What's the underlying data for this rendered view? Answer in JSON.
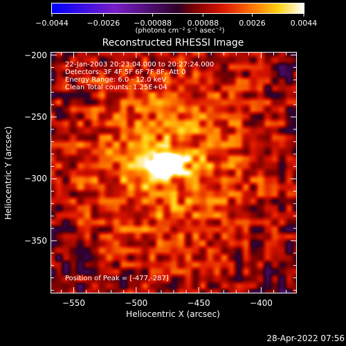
{
  "colorbar": {
    "tick_labels": [
      "−0.0044",
      "−0.0026",
      "−0.00088",
      "0.00088",
      "0.0026",
      "0.0044"
    ],
    "unit_label": "(photons cm⁻² s⁻¹ asec⁻²)"
  },
  "plot": {
    "title": "Reconstructed RHESSI Image",
    "info": {
      "date_line": "22-Jan-2003 20:23:04.000 to 20:27:24.000",
      "detectors_line": "Detectors: 3F 4F 5F 6F 7F 8F, Att 0",
      "energy_line": "Energy Range: 6.0 - 12.0 keV",
      "algorithm_line": "Clean     Total counts: 1.25E+04"
    },
    "peak_label": "Position of Peak = [-477,-287]",
    "x_axis": {
      "label": "Heliocentric X (arcsec)",
      "tick_labels": [
        "−550",
        "−500",
        "−450",
        "−400"
      ]
    },
    "y_axis": {
      "label": "Heliocentric Y (arcsec)",
      "tick_labels": [
        "−200",
        "−250",
        "−300",
        "−350"
      ]
    }
  },
  "chart_data": {
    "type": "heatmap",
    "title": "Reconstructed RHESSI Image",
    "xlabel": "Heliocentric X (arcsec)",
    "ylabel": "Heliocentric Y (arcsec)",
    "xlim": [
      -568,
      -372
    ],
    "ylim": [
      -392,
      -198
    ],
    "x_ticks": [
      -550,
      -500,
      -450,
      -400
    ],
    "y_ticks": [
      -200,
      -250,
      -300,
      -350
    ],
    "color_range": [
      -0.0044,
      0.0044
    ],
    "colorbar_ticks": [
      -0.0044,
      -0.0026,
      -0.00088,
      0.00088,
      0.0026,
      0.0044
    ],
    "colormap": "blue-purple-red-yellow-white",
    "peak": {
      "x": -477,
      "y": -287
    }
  },
  "footer": {
    "timestamp": "28-Apr-2022 07:56"
  },
  "colors": {
    "background": "#000000",
    "foreground": "#ffffff"
  }
}
